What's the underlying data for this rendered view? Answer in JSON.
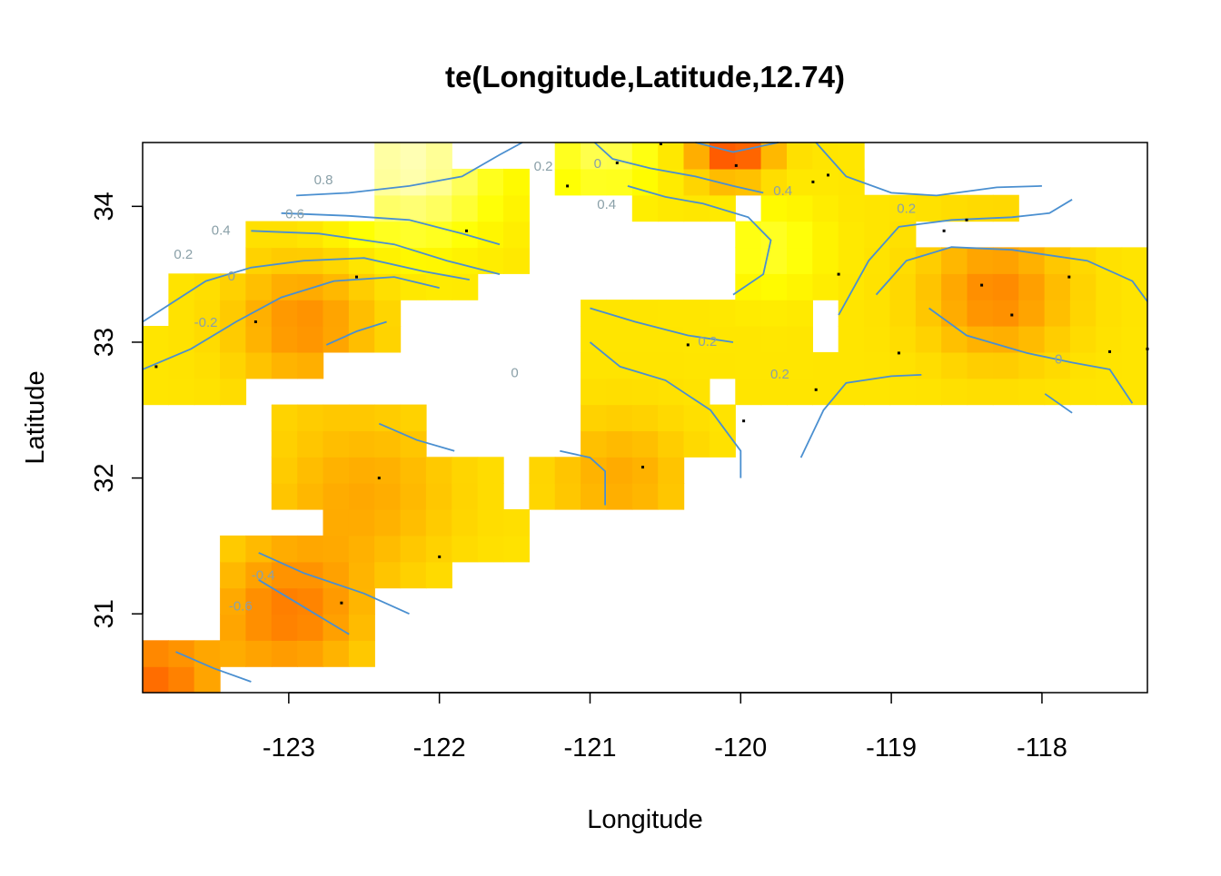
{
  "chart_data": {
    "type": "heatmap",
    "title": "te(Longitude,Latitude,12.74)",
    "xlabel": "Longitude",
    "ylabel": "Latitude",
    "xlim": [
      -123.97,
      -117.3
    ],
    "ylim": [
      30.42,
      34.47
    ],
    "x_ticks": [
      "-123",
      "-122",
      "-121",
      "-120",
      "-119",
      "-118"
    ],
    "x_tick_values": [
      -123,
      -122,
      -121,
      -120,
      -119,
      -118
    ],
    "y_ticks": [
      "31",
      "32",
      "33",
      "34"
    ],
    "y_tick_values": [
      31,
      32,
      33,
      34
    ],
    "grid": false,
    "legend": "none",
    "colormap": "heat.colors (red = low, yellow/white = high)",
    "colors": {
      "low": "#ff0000",
      "mid": "#ff8000",
      "high": "#ffff00",
      "top": "#ffffcc",
      "contour": "#4a8fd0",
      "contour_label": "#8aa0a8"
    },
    "contour_levels": [
      "-0.8",
      "-0.6",
      "-0.4",
      "-0.2",
      "0",
      "0.2",
      "0.4",
      "0.6",
      "0.8"
    ],
    "contour_labels": [
      {
        "text": "0.8",
        "x": -122.77,
        "y": 34.19
      },
      {
        "text": "0.6",
        "x": -122.96,
        "y": 33.94
      },
      {
        "text": "0.4",
        "x": -123.45,
        "y": 33.82
      },
      {
        "text": "0.2",
        "x": -123.7,
        "y": 33.64
      },
      {
        "text": "0",
        "x": -123.38,
        "y": 33.48
      },
      {
        "text": "-0.2",
        "x": -123.55,
        "y": 33.14
      },
      {
        "text": "-0.4",
        "x": -123.17,
        "y": 31.28
      },
      {
        "text": "-0.6",
        "x": -123.32,
        "y": 31.05
      },
      {
        "text": "0.2",
        "x": -121.31,
        "y": 34.29
      },
      {
        "text": "0",
        "x": -120.95,
        "y": 34.31
      },
      {
        "text": "0.4",
        "x": -120.89,
        "y": 34.01
      },
      {
        "text": "0.4",
        "x": -119.72,
        "y": 34.11
      },
      {
        "text": "0.2",
        "x": -118.9,
        "y": 33.98
      },
      {
        "text": "0.2",
        "x": -120.22,
        "y": 33.0
      },
      {
        "text": "0",
        "x": -121.5,
        "y": 32.77
      },
      {
        "text": "0.2",
        "x": -119.74,
        "y": 32.76
      },
      {
        "text": "0",
        "x": -117.89,
        "y": 32.87
      }
    ]
  }
}
